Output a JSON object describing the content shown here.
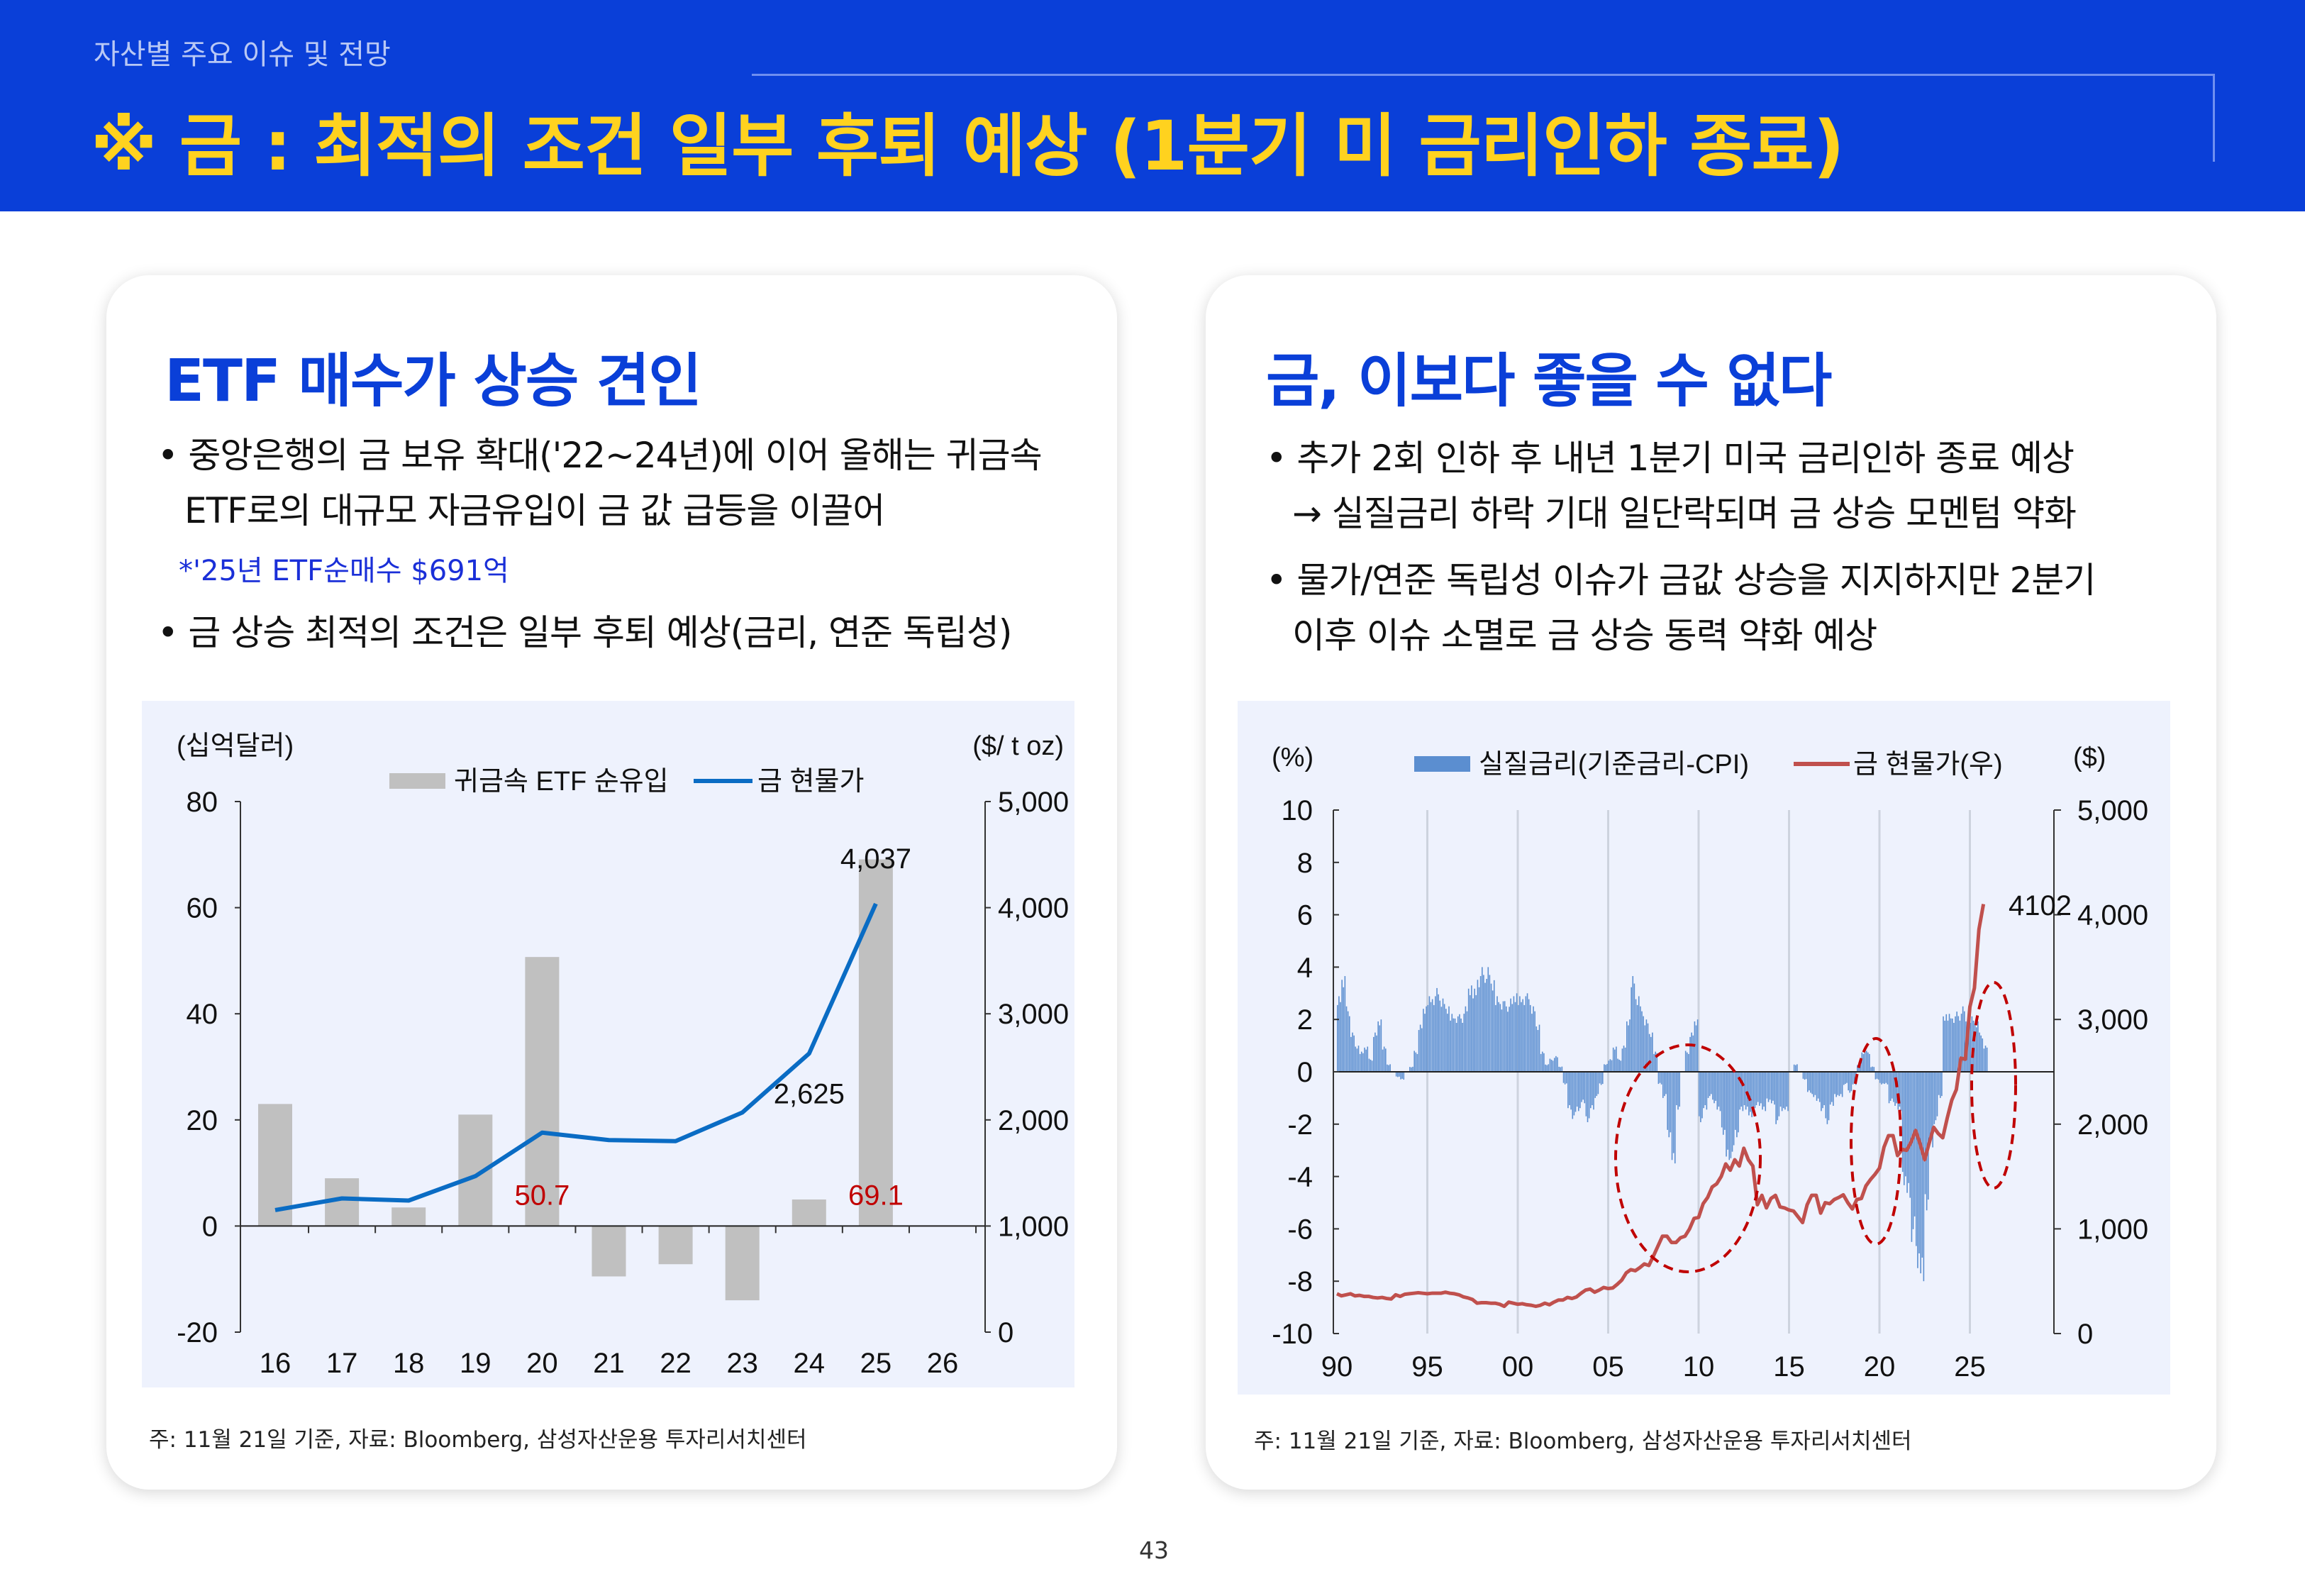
{
  "header": {
    "section": "자산별 주요 이슈 및 전망",
    "title": "※ 금 : 최적의 조건 일부 후퇴 예상 (1분기 미 금리인하 종료)"
  },
  "left": {
    "heading": "ETF 매수가 상승 견인",
    "bullet1": [
      "• 중앙은행의 금 보유 확대('22~24년)에 이어 올해는 귀금속",
      "ETF로의 대규모 자금유입이 금 값 급등을 이끌어"
    ],
    "note": "*'25년 ETF순매수 $691억",
    "bullet2": "• 금 상승 최적의 조건은 일부 후퇴 예상(금리, 연준 독립성)",
    "footnote": "주: 11월 21일 기준, 자료: Bloomberg, 삼성자산운용 투자리서치센터"
  },
  "right": {
    "heading": "금, 이보다 좋을 수 없다",
    "bullet1": [
      "• 추가 2회 인하 후 내년 1분기 미국 금리인하 종료 예상",
      "→ 실질금리 하락 기대 일단락되며 금 상승 모멘텀 약화"
    ],
    "bullet2": [
      "• 물가/연준 독립성 이슈가 금값 상승을 지지하지만 2분기",
      "이후 이슈 소멸로 금 상승 동력 약화 예상"
    ],
    "footnote": "주: 11월  21일 기준, 자료: Bloomberg, 삼성자산운용 투자리서치센터"
  },
  "page_number": "43",
  "chart_data": [
    {
      "type": "bar+line",
      "left_unit": "(십억달러)",
      "right_unit": "($/ t oz)",
      "categories": [
        "16",
        "17",
        "18",
        "19",
        "20",
        "21",
        "22",
        "23",
        "24",
        "25",
        "26"
      ],
      "ylim": [
        -20,
        80
      ],
      "yticks": [
        "80",
        "60",
        "40",
        "20",
        "0",
        "-20"
      ],
      "y2lim": [
        0,
        5000
      ],
      "y2ticks": [
        "5,000",
        "4,000",
        "3,000",
        "2,000",
        "1,000",
        "0"
      ],
      "series": [
        {
          "name": "귀금속 ETF 순유입",
          "kind": "bar",
          "axis": "left",
          "color": "#c0c0c0",
          "values": [
            23,
            9,
            3.5,
            21,
            50.7,
            -9.5,
            -7.2,
            -14,
            5,
            69.1,
            null
          ]
        },
        {
          "name": "금 현물가",
          "kind": "line",
          "axis": "right",
          "color": "#0a6cc4",
          "values": [
            1150,
            1260,
            1240,
            1470,
            1880,
            1810,
            1800,
            2070,
            2625,
            4037,
            null
          ]
        }
      ],
      "data_labels": [
        {
          "series": 1,
          "index": 9,
          "text": "4,037",
          "color": "#111"
        },
        {
          "series": 1,
          "index": 8,
          "text": "2,625",
          "color": "#111"
        },
        {
          "series": 0,
          "index": 4,
          "text": "50.7",
          "color": "#c00000"
        },
        {
          "series": 0,
          "index": 9,
          "text": "69.1",
          "color": "#c00000"
        }
      ],
      "grid": false,
      "legend": "top"
    },
    {
      "type": "bar+line",
      "left_unit": "(%)",
      "right_unit": "($)",
      "xlim": [
        1990,
        2028
      ],
      "xticks": [
        "90",
        "95",
        "00",
        "05",
        "10",
        "15",
        "20",
        "25"
      ],
      "ylim": [
        -10,
        10
      ],
      "yticks": [
        "10",
        "8",
        "6",
        "4",
        "2",
        "0",
        "-2",
        "-4",
        "-6",
        "-8",
        "-10"
      ],
      "y2lim": [
        0,
        5000
      ],
      "y2ticks": [
        "5,000",
        "4,000",
        "3,000",
        "2,000",
        "1,000",
        "0"
      ],
      "x_start": 1990,
      "x_step": 0.25,
      "series": [
        {
          "name": "실질금리(기준금리-CPI)",
          "kind": "bar",
          "axis": "left",
          "color": "#5b8ed0",
          "values": [
            3.0,
            3.8,
            2.5,
            1.5,
            1.0,
            0.8,
            1.0,
            0.5,
            1.5,
            2.0,
            1.0,
            0.3,
            0,
            -0.2,
            -0.3,
            0,
            0.2,
            0.8,
            1.8,
            2.5,
            3.0,
            3.0,
            3.2,
            2.8,
            2.5,
            2.3,
            2.2,
            2.2,
            2.5,
            3.3,
            3.3,
            3.8,
            4.0,
            4.0,
            3.5,
            3.0,
            2.8,
            2.7,
            2.8,
            3.0,
            3.0,
            3.0,
            3.0,
            2.5,
            1.8,
            0.8,
            0.3,
            0.5,
            0.6,
            0.2,
            -0.5,
            -1.5,
            -1.8,
            -1.5,
            -1.2,
            -2.0,
            -1.5,
            -1.0,
            -0.5,
            0.3,
            0.5,
            1.0,
            0.5,
            1.0,
            2.0,
            3.8,
            3.0,
            2.5,
            2.0,
            1.5,
            0.8,
            -0.5,
            -1.0,
            -2.5,
            -3.5,
            -1.5,
            0.0,
            0.8,
            1.5,
            2.0,
            -2.0,
            -1.5,
            -1.0,
            -1.2,
            -1.5,
            -2.5,
            -3.5,
            -3.3,
            -2.5,
            -1.5,
            -1.5,
            -1.8,
            -1.5,
            -1.3,
            -1.5,
            -1.2,
            -1.3,
            -2.0,
            -1.5,
            -1.5,
            0.0,
            0.3,
            0.0,
            -0.3,
            -0.8,
            -1.0,
            -1.2,
            -1.5,
            -2.0,
            -1.3,
            -1.0,
            -1.0,
            -0.5,
            -0.8,
            -0.5,
            0.3,
            0.8,
            0.8,
            0.2,
            -0.3,
            -0.5,
            -0.5,
            -1.2,
            -1.3,
            -1.5,
            -4.5,
            -5.0,
            -6.5,
            -7.5,
            -8.0,
            -5.5,
            -3.0,
            -2.0,
            -1.0,
            2.2,
            2.3,
            2.2,
            2.3,
            2.5,
            2.0,
            2.2,
            2.0,
            1.5,
            1.0
          ]
        },
        {
          "name": "금 현물가(우)",
          "kind": "line",
          "axis": "right",
          "color": "#c0504d",
          "values": [
            380,
            360,
            370,
            380,
            360,
            365,
            355,
            355,
            345,
            340,
            345,
            335,
            330,
            370,
            355,
            375,
            380,
            385,
            390,
            385,
            380,
            385,
            385,
            385,
            395,
            385,
            380,
            370,
            350,
            340,
            325,
            290,
            295,
            295,
            290,
            290,
            280,
            260,
            300,
            290,
            280,
            285,
            275,
            270,
            260,
            270,
            290,
            275,
            300,
            320,
            320,
            345,
            335,
            350,
            385,
            415,
            425,
            395,
            415,
            440,
            430,
            435,
            470,
            510,
            580,
            610,
            600,
            630,
            665,
            650,
            740,
            835,
            930,
            930,
            870,
            870,
            915,
            930,
            1000,
            1100,
            1110,
            1240,
            1300,
            1400,
            1430,
            1500,
            1620,
            1560,
            1660,
            1600,
            1770,
            1660,
            1600,
            1230,
            1320,
            1200,
            1290,
            1320,
            1210,
            1200,
            1180,
            1170,
            1115,
            1060,
            1230,
            1320,
            1320,
            1150,
            1250,
            1240,
            1280,
            1300,
            1325,
            1250,
            1190,
            1280,
            1290,
            1410,
            1470,
            1520,
            1580,
            1780,
            1890,
            1890,
            1700,
            1760,
            1750,
            1830,
            1940,
            1810,
            1660,
            1820,
            1970,
            1910,
            1870,
            2060,
            2230,
            2330,
            2630,
            2620,
            3120,
            3300,
            3860,
            4102
          ]
        }
      ],
      "data_labels": [
        {
          "series": 1,
          "index": 143,
          "text": "4102",
          "color": "#111"
        }
      ],
      "annotations": "red dashed ellipses around 2007-2012, 2019-2020, 2026",
      "annotation_color": "#c00000",
      "grid": "vertical",
      "legend": "top"
    }
  ]
}
